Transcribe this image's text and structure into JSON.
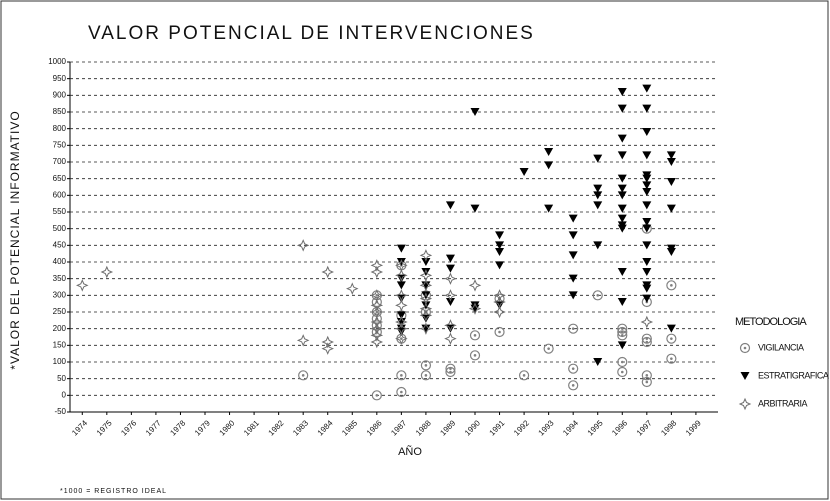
{
  "chart_data": {
    "type": "scatter",
    "title": "VALOR POTENCIAL DE INTERVENCIONES",
    "y_label": "*VALOR DEL POTENCIAL INFORMATIVO",
    "x_label": "AÑO",
    "footnote": "*1000 = REGISTRO IDEAL",
    "legend_title": "METODOLOGIA",
    "legend": "right",
    "grid": true,
    "xlim": [
      1973.5,
      1999.9
    ],
    "xticks": [
      1974,
      1975,
      1976,
      1977,
      1978,
      1979,
      1980,
      1981,
      1982,
      1983,
      1984,
      1985,
      1986,
      1987,
      1988,
      1989,
      1990,
      1991,
      1992,
      1993,
      1994,
      1995,
      1996,
      1997,
      1998,
      1999
    ],
    "ylim": [
      -50,
      1000
    ],
    "yticks": [
      -50,
      0,
      50,
      100,
      150,
      200,
      250,
      300,
      350,
      400,
      450,
      500,
      550,
      600,
      650,
      700,
      750,
      800,
      850,
      900,
      950,
      1000
    ],
    "series": [
      {
        "name": "VIGILANCIA",
        "color": "#808080",
        "marker": "circle",
        "x": [
          1983,
          1986,
          1986,
          1986,
          1986,
          1986,
          1986,
          1986,
          1987,
          1987,
          1987,
          1987,
          1987,
          1988,
          1988,
          1988,
          1988,
          1989,
          1989,
          1990,
          1990,
          1991,
          1991,
          1992,
          1993,
          1994,
          1994,
          1994,
          1995,
          1996,
          1996,
          1996,
          1996,
          1996,
          1997,
          1997,
          1997,
          1997,
          1997,
          1997,
          1998,
          1998,
          1998
        ],
        "values": [
          60,
          0,
          190,
          210,
          230,
          250,
          280,
          300,
          10,
          60,
          170,
          240,
          390,
          60,
          90,
          250,
          300,
          70,
          80,
          120,
          180,
          190,
          290,
          60,
          140,
          30,
          80,
          200,
          300,
          70,
          100,
          180,
          190,
          200,
          40,
          60,
          160,
          170,
          280,
          500,
          110,
          170,
          330
        ]
      },
      {
        "name": "ESTRATIGRAFICA",
        "color": "#000000",
        "marker": "triangle-down",
        "x": [
          1987,
          1987,
          1987,
          1987,
          1987,
          1987,
          1987,
          1987,
          1987,
          1988,
          1988,
          1988,
          1988,
          1988,
          1988,
          1988,
          1989,
          1989,
          1989,
          1989,
          1989,
          1990,
          1990,
          1990,
          1990,
          1991,
          1991,
          1991,
          1991,
          1991,
          1992,
          1993,
          1993,
          1993,
          1994,
          1994,
          1994,
          1994,
          1994,
          1995,
          1995,
          1995,
          1995,
          1995,
          1995,
          1996,
          1996,
          1996,
          1996,
          1996,
          1996,
          1996,
          1996,
          1996,
          1996,
          1996,
          1996,
          1996,
          1996,
          1997,
          1997,
          1997,
          1997,
          1997,
          1997,
          1997,
          1997,
          1997,
          1997,
          1997,
          1997,
          1997,
          1997,
          1997,
          1997,
          1997,
          1998,
          1998,
          1998,
          1998,
          1998,
          1998,
          1998
        ],
        "values": [
          190,
          200,
          220,
          240,
          290,
          330,
          350,
          400,
          440,
          200,
          230,
          270,
          300,
          330,
          370,
          400,
          200,
          280,
          380,
          410,
          570,
          260,
          270,
          560,
          850,
          270,
          390,
          430,
          450,
          480,
          670,
          560,
          690,
          730,
          300,
          350,
          420,
          480,
          530,
          100,
          450,
          570,
          600,
          620,
          710,
          150,
          280,
          370,
          500,
          510,
          530,
          560,
          600,
          620,
          650,
          720,
          770,
          860,
          910,
          290,
          320,
          330,
          370,
          400,
          450,
          500,
          520,
          570,
          610,
          630,
          650,
          660,
          720,
          790,
          860,
          920,
          200,
          430,
          440,
          560,
          640,
          700,
          720
        ]
      },
      {
        "name": "ARBITRARIA",
        "color": "#6e6e6e",
        "marker": "star",
        "x": [
          1974,
          1975,
          1983,
          1983,
          1984,
          1984,
          1984,
          1985,
          1986,
          1986,
          1986,
          1986,
          1986,
          1986,
          1986,
          1986,
          1986,
          1987,
          1987,
          1987,
          1987,
          1987,
          1987,
          1987,
          1988,
          1988,
          1988,
          1988,
          1988,
          1988,
          1988,
          1989,
          1989,
          1989,
          1989,
          1990,
          1990,
          1991,
          1991,
          1991,
          1997
        ],
        "values": [
          330,
          370,
          165,
          450,
          140,
          160,
          370,
          320,
          160,
          180,
          200,
          220,
          250,
          270,
          300,
          370,
          390,
          170,
          200,
          220,
          270,
          300,
          360,
          390,
          200,
          240,
          260,
          290,
          330,
          360,
          420,
          170,
          210,
          300,
          350,
          260,
          330,
          250,
          280,
          300,
          220
        ]
      }
    ]
  }
}
